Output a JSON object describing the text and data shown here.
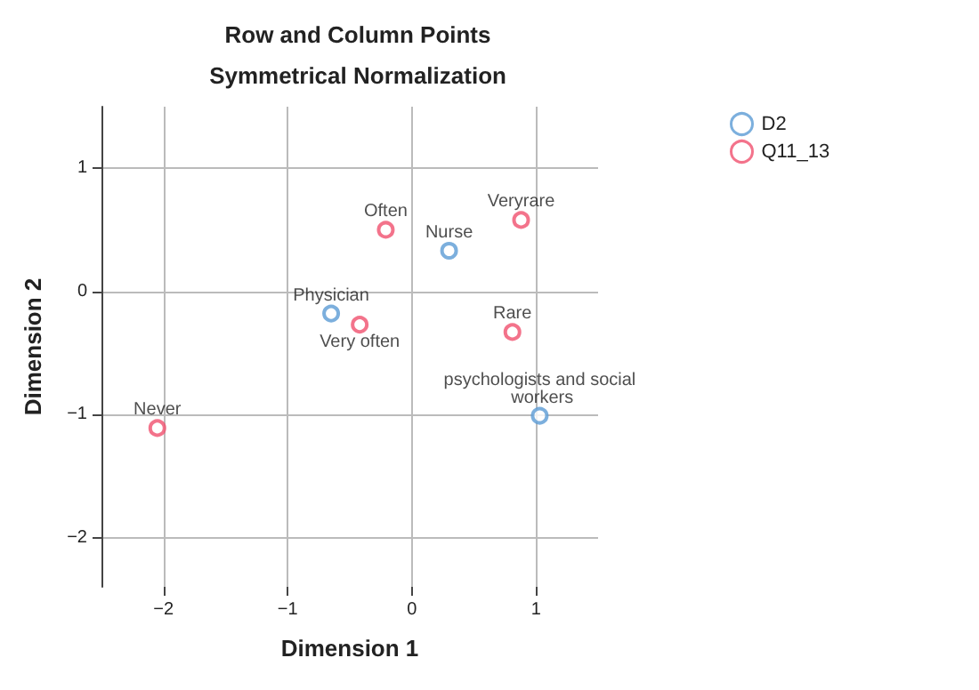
{
  "chart_data": {
    "type": "scatter",
    "title": "Row and Column Points",
    "subtitle": "Symmetrical Normalization",
    "xlabel": "Dimension 1",
    "ylabel": "Dimension 2",
    "xlim": [
      -2.5,
      1.5
    ],
    "ylim": [
      -2.4,
      1.5
    ],
    "xticks": [
      -2,
      -1,
      0,
      1
    ],
    "yticks": [
      -2,
      -1,
      0,
      1
    ],
    "grid": true,
    "legend": "top right",
    "marker": "circle",
    "series": [
      {
        "name": "D2",
        "color": "#5b9bd5",
        "x": [
          -0.65,
          0.3,
          1.03
        ],
        "values": [
          -0.18,
          0.33,
          -1.01
        ]
      },
      {
        "name": "Q11_13",
        "color": "#f0506e",
        "x": [
          -2.05,
          -0.21,
          0.88,
          -0.42,
          0.81
        ],
        "values": [
          -1.11,
          0.5,
          0.58,
          -0.27,
          -0.33
        ]
      }
    ],
    "annotations": [
      {
        "text": "Physician",
        "x": -0.65,
        "y": -0.18
      },
      {
        "text": "Nurse",
        "x": 0.3,
        "y": 0.33
      },
      {
        "text": "psychologists and social workers",
        "x": 1.03,
        "y": -1.01
      },
      {
        "text": "Never",
        "x": -2.05,
        "y": -1.11
      },
      {
        "text": "Often",
        "x": -0.21,
        "y": 0.5
      },
      {
        "text": "Veryrare",
        "x": 0.88,
        "y": 0.58
      },
      {
        "text": "Very often",
        "x": -0.42,
        "y": -0.27
      },
      {
        "text": "Rare",
        "x": 0.81,
        "y": -0.33
      }
    ]
  }
}
